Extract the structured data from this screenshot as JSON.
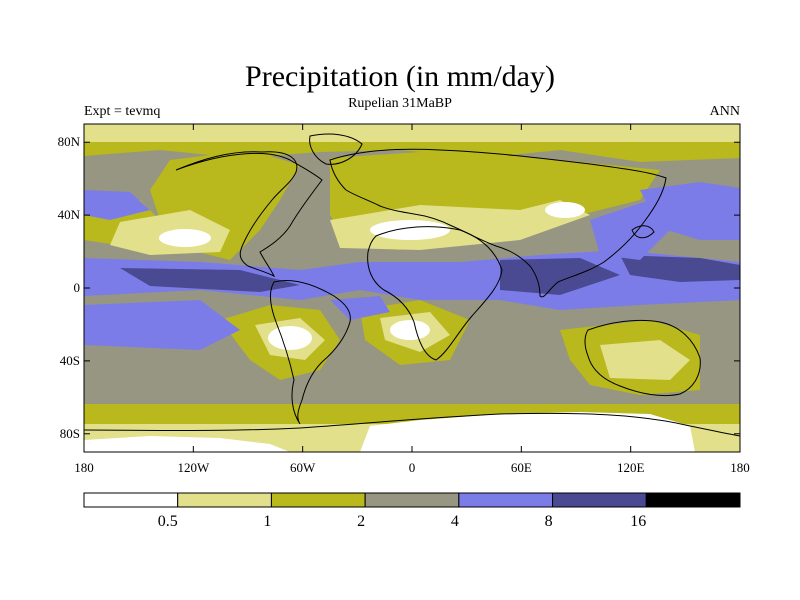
{
  "header": {
    "title": "Precipitation (in mm/day)",
    "subtitle": "Rupelian  31MaBP",
    "left_label": "Expt = tevmq",
    "right_label": "ANN"
  },
  "map": {
    "x_ticks": [
      {
        "lon": -180,
        "label": "180"
      },
      {
        "lon": -120,
        "label": "120W"
      },
      {
        "lon": -60,
        "label": "60W"
      },
      {
        "lon": 0,
        "label": "0"
      },
      {
        "lon": 60,
        "label": "60E"
      },
      {
        "lon": 120,
        "label": "120E"
      },
      {
        "lon": 180,
        "label": "180"
      }
    ],
    "y_ticks": [
      {
        "lat": 80,
        "label": "80N"
      },
      {
        "lat": 40,
        "label": "40N"
      },
      {
        "lat": 0,
        "label": "0"
      },
      {
        "lat": -40,
        "label": "40S"
      },
      {
        "lat": -80,
        "label": "80S"
      }
    ],
    "lon_range": [
      -180,
      180
    ],
    "lat_range": [
      -90,
      90
    ],
    "colors": {
      "lt0_5": "#ffffff",
      "r0_5_1": "#e2e08a",
      "r1_2": "#b9b81d",
      "r2_4": "#969682",
      "r4_8": "#7c7ce8",
      "r8_16": "#4a4a92",
      "gt16": "#000000",
      "coast": "#000000"
    }
  },
  "colorbar": {
    "levels": [
      "0.5",
      "1",
      "2",
      "4",
      "8",
      "16"
    ],
    "colors": [
      "#ffffff",
      "#e2e08a",
      "#b9b81d",
      "#969682",
      "#7c7ce8",
      "#4a4a92",
      "#000000"
    ]
  }
}
